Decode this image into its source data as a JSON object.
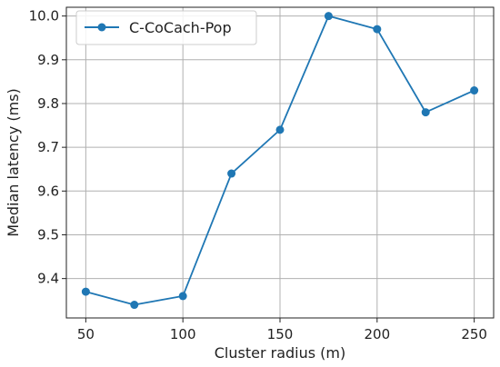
{
  "chart_data": {
    "type": "line",
    "x": [
      50,
      75,
      100,
      125,
      150,
      175,
      200,
      225,
      250
    ],
    "series": [
      {
        "name": "C-CoCach-Pop",
        "values": [
          9.37,
          9.34,
          9.36,
          9.64,
          9.74,
          10.0,
          9.97,
          9.78,
          9.83
        ],
        "color": "#1f77b4",
        "marker": "circle"
      }
    ],
    "xlabel": "Cluster radius (m)",
    "ylabel": "Median latency (ms)",
    "xlim": [
      40,
      260
    ],
    "ylim": [
      9.31,
      10.02
    ],
    "xticks": [
      50,
      100,
      150,
      200,
      250
    ],
    "xtick_labels": [
      "50",
      "100",
      "150",
      "200",
      "250"
    ],
    "yticks": [
      9.4,
      9.5,
      9.6,
      9.7,
      9.8,
      9.9,
      10.0
    ],
    "ytick_labels": [
      "9.4",
      "9.5",
      "9.6",
      "9.7",
      "9.8",
      "9.9",
      "10.0"
    ],
    "grid": true,
    "legend": {
      "position": "top-left"
    }
  }
}
